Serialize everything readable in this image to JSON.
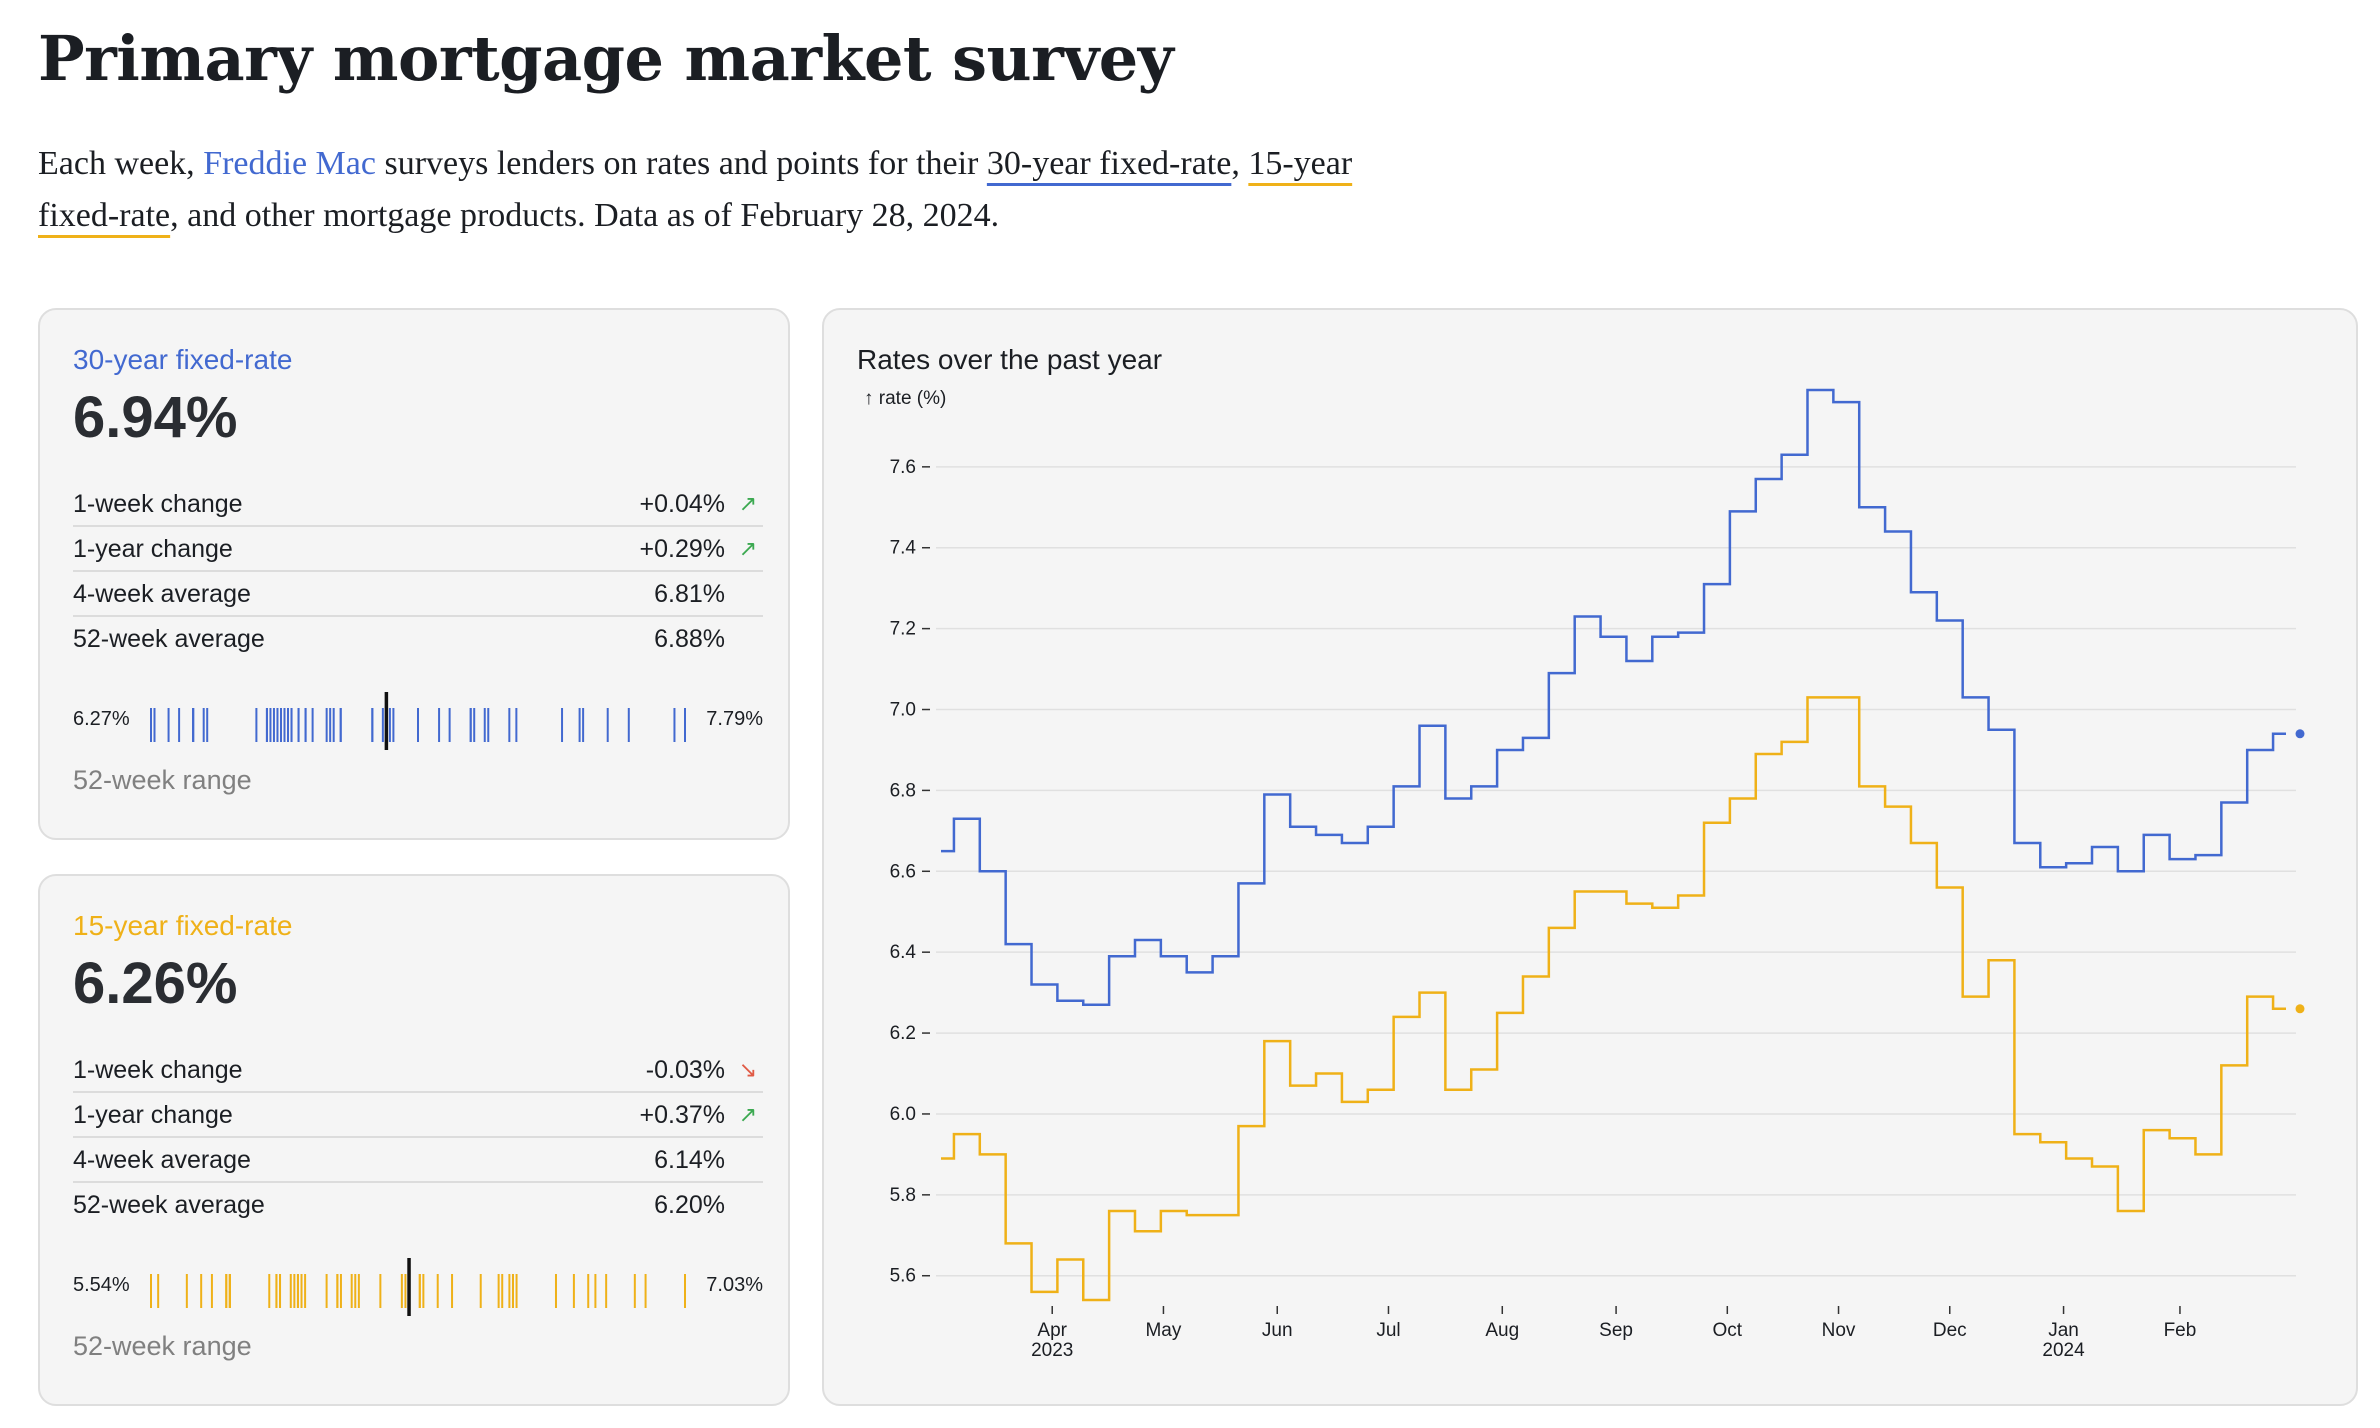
{
  "header": {
    "title": "Primary mortgage market survey",
    "intro_1": "Each week, ",
    "intro_link": "Freddie Mac",
    "intro_2": " surveys lenders on rates and points for their ",
    "intro_30": "30-year fixed-rate",
    "intro_3": ", ",
    "intro_15": "15-year fixed-rate",
    "intro_4": ", and other mortgage products. Data as of February 28, 2024."
  },
  "colors": {
    "thirty": "#4269d0",
    "fifteen": "#efb118",
    "up": "#3ca951",
    "down": "#e05a45"
  },
  "cards": [
    {
      "name": "30-year fixed-rate",
      "value": "6.94%",
      "stats": [
        {
          "label": "1-week change",
          "value": "+0.04%",
          "arrow": "↗",
          "dir": "up"
        },
        {
          "label": "1-year change",
          "value": "+0.29%",
          "arrow": "↗",
          "dir": "up"
        },
        {
          "label": "4-week average",
          "value": "6.81%",
          "arrow": "",
          "dir": ""
        },
        {
          "label": "52-week average",
          "value": "6.88%",
          "arrow": "",
          "dir": ""
        }
      ],
      "range_low": "6.27%",
      "range_high": "7.79%",
      "range_label": "52-week range"
    },
    {
      "name": "15-year fixed-rate",
      "value": "6.26%",
      "stats": [
        {
          "label": "1-week change",
          "value": "-0.03%",
          "arrow": "↘",
          "dir": "down"
        },
        {
          "label": "1-year change",
          "value": "+0.37%",
          "arrow": "↗",
          "dir": "up"
        },
        {
          "label": "4-week average",
          "value": "6.14%",
          "arrow": "",
          "dir": ""
        },
        {
          "label": "52-week average",
          "value": "6.20%",
          "arrow": "",
          "dir": ""
        }
      ],
      "range_low": "5.54%",
      "range_high": "7.03%",
      "range_label": "52-week range"
    }
  ],
  "chart_data": {
    "type": "line",
    "curve": "step",
    "title": "Rates over the past year",
    "ylabel": "↑ rate (%)",
    "ylim": [
      5.54,
      7.79
    ],
    "yticks": [
      5.6,
      5.8,
      6.0,
      6.2,
      6.4,
      6.6,
      6.8,
      7.0,
      7.2,
      7.4,
      7.6
    ],
    "xticks": [
      {
        "label": "Apr",
        "sub": "2023",
        "week": 4.3
      },
      {
        "label": "May",
        "sub": "",
        "week": 8.6
      },
      {
        "label": "Jun",
        "sub": "",
        "week": 13.0
      },
      {
        "label": "Jul",
        "sub": "",
        "week": 17.3
      },
      {
        "label": "Aug",
        "sub": "",
        "week": 21.7
      },
      {
        "label": "Sep",
        "sub": "",
        "week": 26.1
      },
      {
        "label": "Oct",
        "sub": "",
        "week": 30.4
      },
      {
        "label": "Nov",
        "sub": "",
        "week": 34.7
      },
      {
        "label": "Dec",
        "sub": "",
        "week": 39.0
      },
      {
        "label": "Jan",
        "sub": "2024",
        "week": 43.4
      },
      {
        "label": "Feb",
        "sub": "",
        "week": 47.9
      }
    ],
    "x_start": "2023-03-02",
    "x_end": "2024-02-29",
    "series": [
      {
        "name": "30-year fixed-rate",
        "values": [
          6.65,
          6.73,
          6.6,
          6.42,
          6.32,
          6.28,
          6.27,
          6.39,
          6.43,
          6.39,
          6.35,
          6.39,
          6.57,
          6.79,
          6.71,
          6.69,
          6.67,
          6.71,
          6.81,
          6.96,
          6.78,
          6.81,
          6.9,
          6.93,
          7.09,
          7.23,
          7.18,
          7.12,
          7.18,
          7.19,
          7.31,
          7.49,
          7.57,
          7.63,
          7.79,
          7.76,
          7.5,
          7.44,
          7.29,
          7.22,
          7.03,
          6.95,
          6.67,
          6.61,
          6.62,
          6.66,
          6.6,
          6.69,
          6.63,
          6.64,
          6.77,
          6.9,
          6.94
        ]
      },
      {
        "name": "15-year fixed-rate",
        "values": [
          5.89,
          5.95,
          5.9,
          5.68,
          5.56,
          5.64,
          5.54,
          5.76,
          5.71,
          5.76,
          5.75,
          5.75,
          5.97,
          6.18,
          6.07,
          6.1,
          6.03,
          6.06,
          6.24,
          6.3,
          6.06,
          6.11,
          6.25,
          6.34,
          6.46,
          6.55,
          6.55,
          6.52,
          6.51,
          6.54,
          6.72,
          6.78,
          6.89,
          6.92,
          7.03,
          7.03,
          6.81,
          6.76,
          6.67,
          6.56,
          6.29,
          6.38,
          5.95,
          5.93,
          5.89,
          5.87,
          5.76,
          5.96,
          5.94,
          5.9,
          6.12,
          6.29,
          6.26
        ]
      }
    ]
  }
}
